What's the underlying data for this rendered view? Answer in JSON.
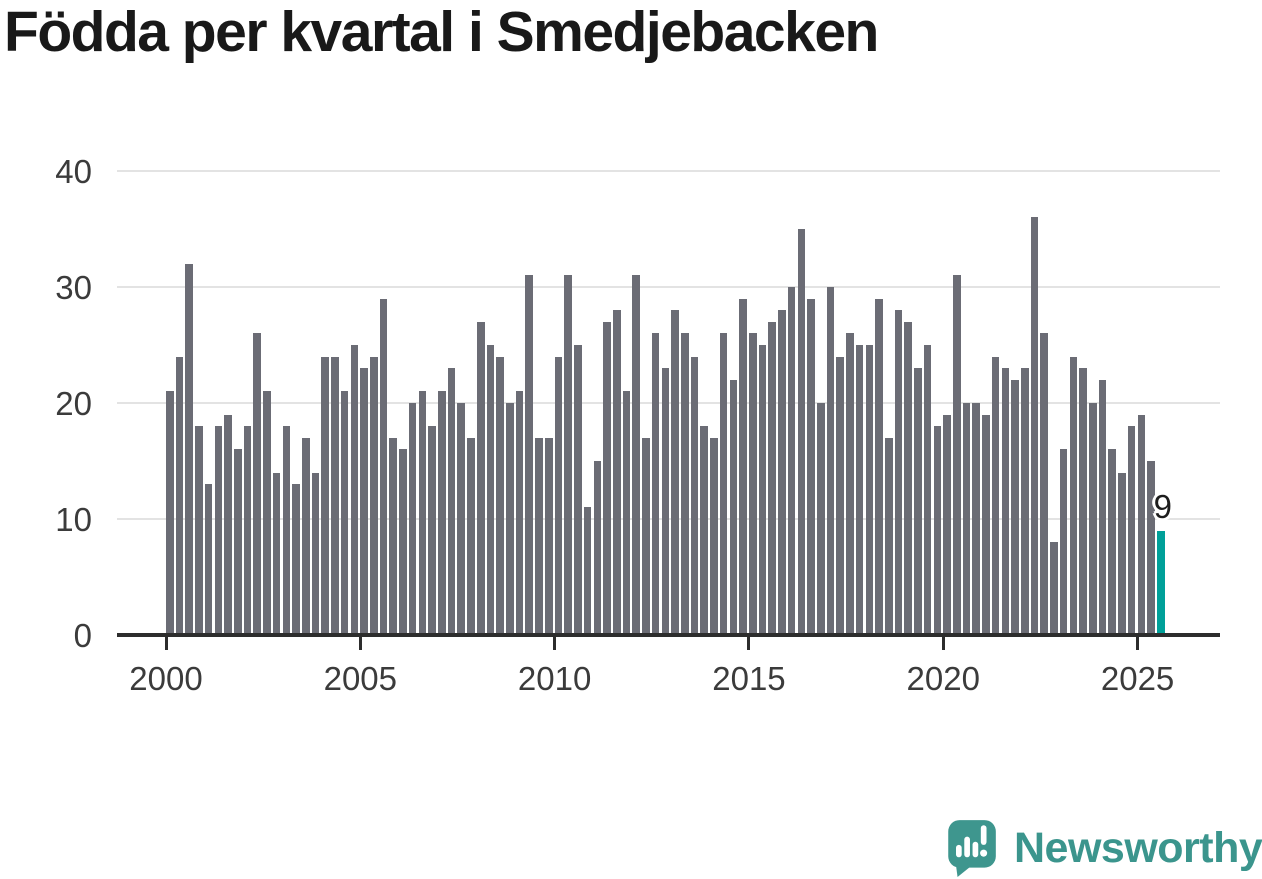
{
  "title": "Födda per kvartal i Smedjebacken",
  "chart_data": {
    "type": "bar",
    "title": "Födda per kvartal i Smedjebacken",
    "period_start": "2000 Q1",
    "period_end": "2025 Q3",
    "grid": "horizontal",
    "ylim": [
      0,
      40
    ],
    "y_ticks": [
      0,
      10,
      20,
      30,
      40
    ],
    "x_ticks": [
      "2000",
      "2005",
      "2010",
      "2015",
      "2020",
      "2025"
    ],
    "bar_color": "#6B6C75",
    "years": [
      {
        "year": 2000,
        "values": [
          21,
          24,
          32,
          18
        ]
      },
      {
        "year": 2001,
        "values": [
          13,
          18,
          19,
          16
        ]
      },
      {
        "year": 2002,
        "values": [
          18,
          26,
          21,
          14
        ]
      },
      {
        "year": 2003,
        "values": [
          18,
          13,
          17,
          14
        ]
      },
      {
        "year": 2004,
        "values": [
          24,
          24,
          21,
          25
        ]
      },
      {
        "year": 2005,
        "values": [
          23,
          24,
          29,
          17
        ]
      },
      {
        "year": 2006,
        "values": [
          16,
          20,
          21,
          18
        ]
      },
      {
        "year": 2007,
        "values": [
          21,
          23,
          20,
          17
        ]
      },
      {
        "year": 2008,
        "values": [
          27,
          25,
          24,
          20
        ]
      },
      {
        "year": 2009,
        "values": [
          21,
          31,
          17,
          17
        ]
      },
      {
        "year": 2010,
        "values": [
          24,
          31,
          25,
          11
        ]
      },
      {
        "year": 2011,
        "values": [
          15,
          27,
          28,
          21
        ]
      },
      {
        "year": 2012,
        "values": [
          31,
          17,
          26,
          23
        ]
      },
      {
        "year": 2013,
        "values": [
          28,
          26,
          24,
          18
        ]
      },
      {
        "year": 2014,
        "values": [
          17,
          26,
          22,
          29
        ]
      },
      {
        "year": 2015,
        "values": [
          26,
          25,
          27,
          28
        ]
      },
      {
        "year": 2016,
        "values": [
          30,
          35,
          29,
          20
        ]
      },
      {
        "year": 2017,
        "values": [
          30,
          24,
          26,
          25
        ]
      },
      {
        "year": 2018,
        "values": [
          25,
          29,
          17,
          28
        ]
      },
      {
        "year": 2019,
        "values": [
          27,
          23,
          25,
          18
        ]
      },
      {
        "year": 2020,
        "values": [
          19,
          31,
          20,
          20
        ]
      },
      {
        "year": 2021,
        "values": [
          19,
          24,
          23,
          22
        ]
      },
      {
        "year": 2022,
        "values": [
          23,
          36,
          26,
          8
        ]
      },
      {
        "year": 2023,
        "values": [
          16,
          24,
          23,
          20
        ]
      },
      {
        "year": 2024,
        "values": [
          22,
          16,
          14,
          18
        ]
      },
      {
        "year": 2025,
        "values": [
          19,
          15,
          9
        ]
      }
    ],
    "highlight": {
      "position": "last",
      "value": 9,
      "label": "9",
      "color": "#00A099"
    }
  },
  "branding": {
    "logo_text": "Newsworthy",
    "logo_icon": "newsworthy-speech-bubble-chart-icon",
    "logo_color": "#3B958D"
  }
}
